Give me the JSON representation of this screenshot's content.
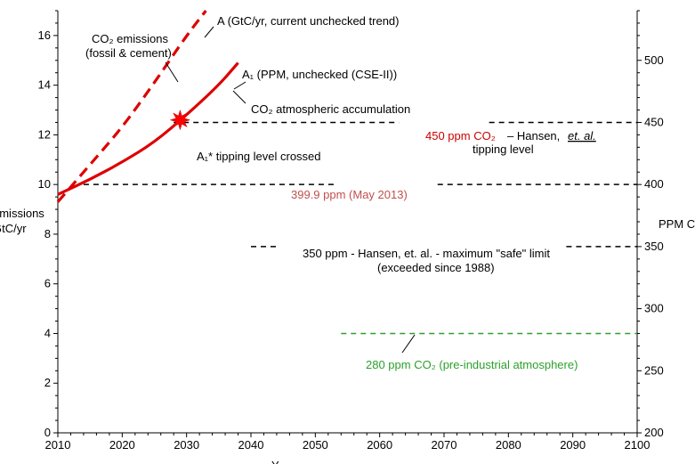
{
  "chart_data": {
    "type": "line",
    "title": "",
    "xlabel": "Y",
    "ylabel": "emissions GtC/yr",
    "y2label": "PPM C",
    "xlim": [
      2010,
      2100
    ],
    "ylim": [
      0,
      17
    ],
    "y2lim": [
      200,
      540
    ],
    "x_ticks": [
      2010,
      2020,
      2030,
      2040,
      2050,
      2060,
      2070,
      2080,
      2090,
      2100
    ],
    "y_ticks": [
      0,
      2,
      4,
      6,
      8,
      10,
      12,
      14,
      16
    ],
    "y2_ticks": [
      200,
      250,
      300,
      350,
      400,
      450,
      500
    ],
    "grid": false,
    "colors": {
      "red": "#dd0000",
      "black": "#000000",
      "green": "#2ca02c",
      "brown": "#c0504d"
    },
    "series": [
      {
        "axis": "left",
        "style": "dashed",
        "color": "#dd0000",
        "points": [
          [
            2010,
            9.3
          ],
          [
            2015,
            10.8
          ],
          [
            2020,
            12.3
          ],
          [
            2025,
            14.1
          ],
          [
            2030,
            16.0
          ],
          [
            2033,
            17.0
          ]
        ]
      },
      {
        "axis": "left",
        "style": "solid",
        "color": "#dd0000",
        "points": [
          [
            2010,
            9.6
          ],
          [
            2015,
            10.2
          ],
          [
            2020,
            10.9
          ],
          [
            2025,
            11.7
          ],
          [
            2030,
            12.8
          ],
          [
            2035,
            14.0
          ],
          [
            2038,
            14.9
          ]
        ]
      },
      {
        "axis": "right",
        "style": "dashed",
        "color": "#000000",
        "segments": [
          [
            2014,
            2053
          ],
          [
            2069,
            2100
          ]
        ],
        "value": 400
      },
      {
        "axis": "right",
        "style": "dashed",
        "color": "#000000",
        "segments": [
          [
            2028,
            2063
          ],
          [
            2077,
            2100
          ]
        ],
        "value": 450
      },
      {
        "axis": "right",
        "style": "dashed",
        "color": "#000000",
        "segments": [
          [
            2040,
            2044
          ],
          [
            2089,
            2100
          ]
        ],
        "value": 350
      },
      {
        "axis": "right",
        "style": "dashed",
        "color": "#2ca02c",
        "segments": [
          [
            2054,
            2100
          ]
        ],
        "value": 280
      }
    ],
    "annotations": [
      {
        "key": "a_label",
        "text": "A (GtC/yr, current unchecked trend)"
      },
      {
        "key": "emissions1",
        "text": "CO₂ emissions"
      },
      {
        "key": "emissions2",
        "text": "(fossil & cement)"
      },
      {
        "key": "a1_label",
        "text": "A₁  (PPM, unchecked (CSE-II))"
      },
      {
        "key": "accum",
        "text": "CO₂ atmospheric accumulation"
      },
      {
        "key": "h450a",
        "text": "450 ppm CO₂"
      },
      {
        "key": "h450b",
        "text": "– Hansen, "
      },
      {
        "key": "h450c",
        "text": "et. al."
      },
      {
        "key": "h450d",
        "text": "tipping level"
      },
      {
        "key": "tip",
        "text": "A₁* tipping level crossed"
      },
      {
        "key": "may2013",
        "text": "399.9 ppm (May 2013)"
      },
      {
        "key": "safe1",
        "text": "350 ppm  - Hansen, et. al. - maximum  \"safe\" limit"
      },
      {
        "key": "safe2",
        "text": "(exceeded since 1988)"
      },
      {
        "key": "preind",
        "text": "280 ppm CO₂ (pre-industrial atmosphere)"
      }
    ]
  }
}
